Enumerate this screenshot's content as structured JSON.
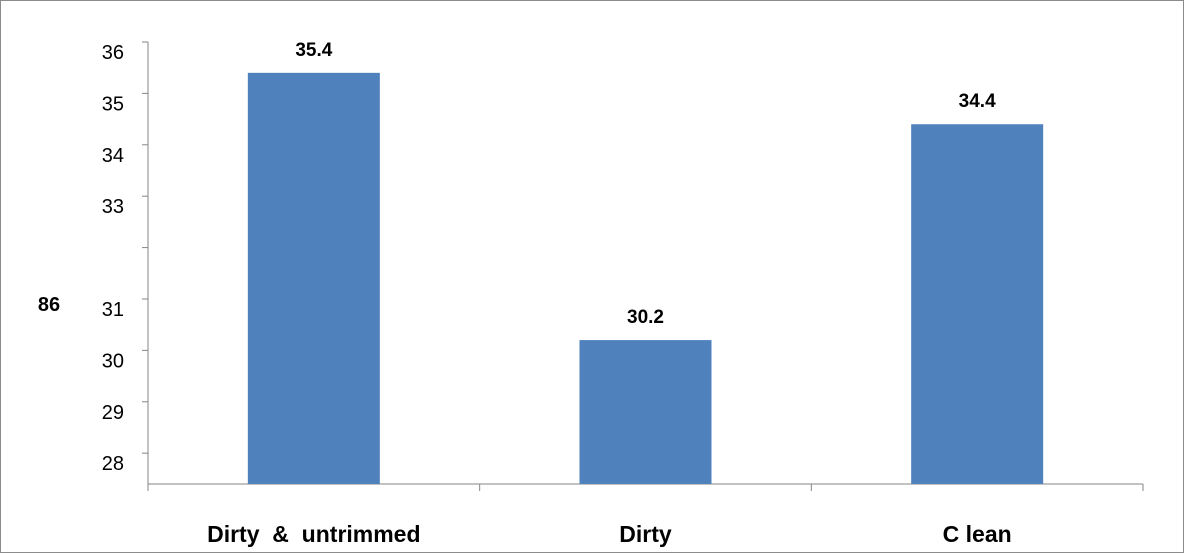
{
  "chart_data": {
    "type": "bar",
    "categories": [
      "Dirty  &  untrimmed",
      "Dirty",
      "C lean"
    ],
    "values": [
      35.4,
      30.2,
      34.4
    ],
    "data_labels": [
      "35.4",
      "30.2",
      "34.4"
    ],
    "title": "",
    "xlabel": "",
    "ylabel": "86",
    "y_tick_labels": [
      "28",
      "29",
      "30",
      "31",
      "33",
      "34",
      "35",
      "36"
    ],
    "ylim": [
      27.4,
      36
    ],
    "grid": false,
    "legend": "none",
    "bar_color": "#4f81bd"
  }
}
